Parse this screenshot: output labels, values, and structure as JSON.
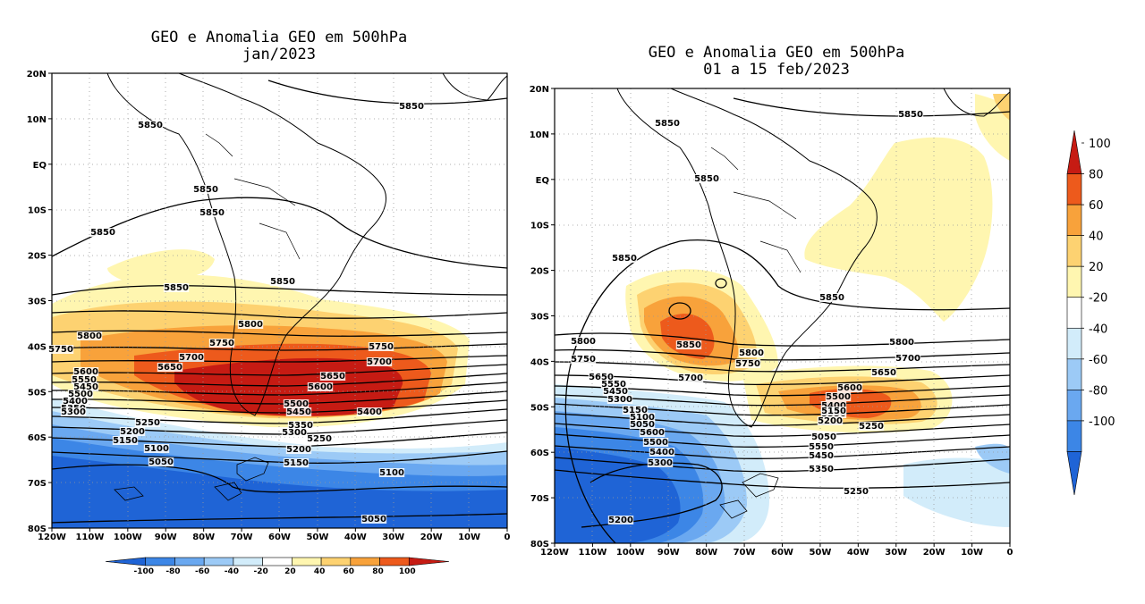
{
  "palette": {
    "-100": "#1f64d6",
    "-80": "#3c86e6",
    "-60": "#6aa8f0",
    "-40": "#9ccaf6",
    "-20": "#d2ecfa",
    "0": "#ffffff",
    "20": "#fff6b0",
    "40": "#fdd271",
    "60": "#f8a23b",
    "80": "#ed5a1c",
    "100": "#c61b13"
  },
  "colorbar_levels": [
    "-100",
    "-80",
    "-60",
    "-40",
    "-20",
    "20",
    "40",
    "60",
    "80",
    "100"
  ],
  "maps": [
    {
      "title_line1": "GEO e Anomalia GEO em 500hPa",
      "title_line2": "jan/2023",
      "lon_ticks": [
        "120W",
        "110W",
        "100W",
        "90W",
        "80W",
        "70W",
        "60W",
        "50W",
        "40W",
        "30W",
        "20W",
        "10W",
        "0"
      ],
      "lat_ticks": [
        "20N",
        "10N",
        "EQ",
        "10S",
        "20S",
        "30S",
        "40S",
        "50S",
        "60S",
        "70S",
        "80S"
      ],
      "contour_labels": [
        "5850",
        "5850",
        "5850",
        "5850",
        "5850",
        "5850",
        "5850",
        "5800",
        "5800",
        "5750",
        "5750",
        "5750",
        "5700",
        "5700",
        "5650",
        "5650",
        "5600",
        "5600",
        "5550",
        "5500",
        "5450",
        "5400",
        "5350",
        "5300",
        "5250",
        "5250",
        "5200",
        "5200",
        "5150",
        "5150",
        "5100",
        "5100",
        "5050",
        "5050",
        "5450",
        "5500",
        "5400",
        "5350",
        "5300"
      ]
    },
    {
      "title_line1": "GEO e Anomalia GEO em 500hPa",
      "title_line2": "01 a 15 feb/2023",
      "lon_ticks": [
        "120W",
        "110W",
        "100W",
        "90W",
        "80W",
        "70W",
        "60W",
        "50W",
        "40W",
        "30W",
        "20W",
        "10W",
        "0"
      ],
      "lat_ticks": [
        "20N",
        "10N",
        "EQ",
        "10S",
        "20S",
        "30S",
        "40S",
        "50S",
        "60S",
        "70S",
        "80S"
      ],
      "contour_labels": [
        "5850",
        "5850",
        "5850",
        "5850",
        "5850",
        "5850",
        "5800",
        "5800",
        "5800",
        "5750",
        "5750",
        "5700",
        "5700",
        "5650",
        "5650",
        "5600",
        "5550",
        "5500",
        "5450",
        "5400",
        "5350",
        "5300",
        "5250",
        "5200",
        "5150",
        "5100",
        "5050",
        "5050",
        "5600",
        "5550",
        "5500",
        "5450",
        "5400",
        "5350",
        "5300",
        "5250",
        "5200",
        "5150"
      ]
    }
  ]
}
